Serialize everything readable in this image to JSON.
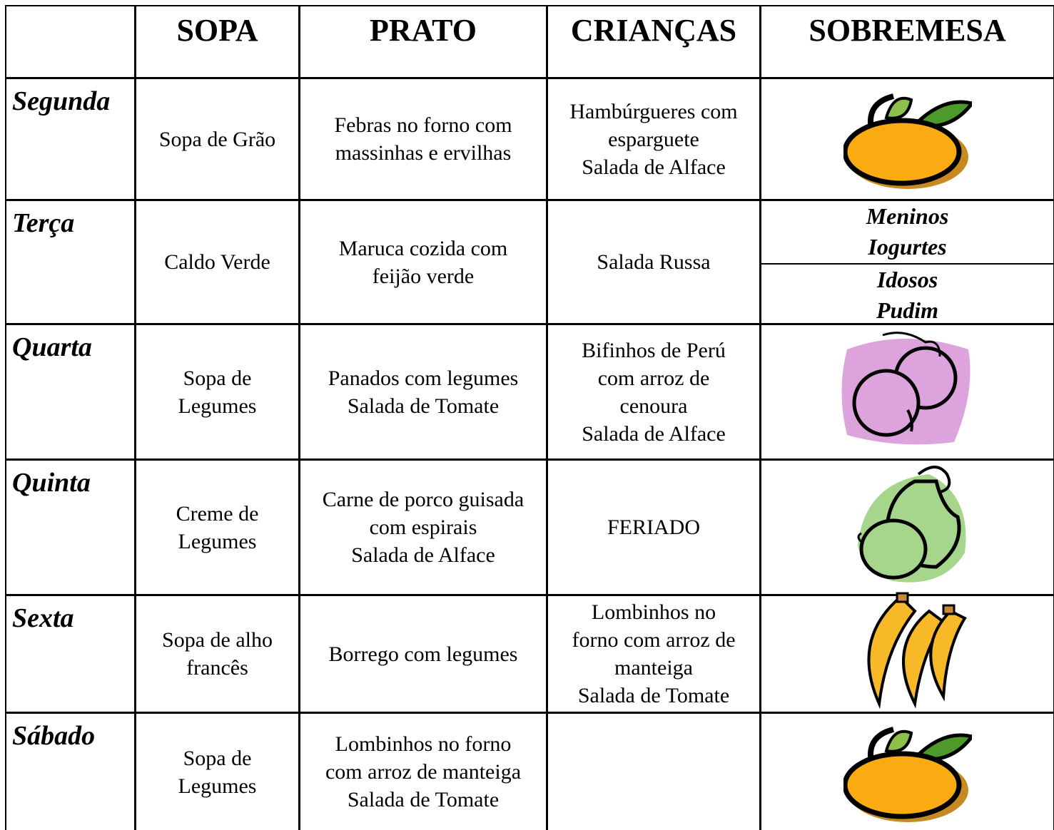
{
  "header": {
    "columns": [
      "SOPA",
      "PRATO",
      "CRIANÇAS",
      "SOBREMESA"
    ]
  },
  "rows": [
    {
      "day": "Segunda",
      "sopa": [
        "Sopa de Grão"
      ],
      "prato": [
        "Febras no forno com",
        "massinhas e ervilhas"
      ],
      "criancas": [
        "Hambúrgueres com",
        "esparguete",
        "Salada de Alface"
      ]
    },
    {
      "day": "Terça",
      "sopa": [
        "Caldo Verde"
      ],
      "prato": [
        "Maruca cozida com",
        "feijão verde"
      ],
      "criancas": [
        "Salada Russa"
      ],
      "sobremesa": [
        [
          "Meninos",
          "Iogurtes"
        ],
        [
          "Idosos",
          "Pudim"
        ]
      ]
    },
    {
      "day": "Quarta",
      "sopa": [
        "Sopa de",
        "Legumes"
      ],
      "prato": [
        "Panados com legumes",
        "Salada de Tomate"
      ],
      "criancas": [
        "Bifinhos de Perú",
        "com arroz de",
        "cenoura",
        "Salada de Alface"
      ]
    },
    {
      "day": "Quinta",
      "sopa": [
        "Creme de",
        "Legumes"
      ],
      "prato": [
        "Carne de porco guisada",
        "com espirais",
        "Salada de Alface"
      ],
      "criancas": [
        "FERIADO"
      ]
    },
    {
      "day": "Sexta",
      "sopa": [
        "Sopa de alho",
        "francês"
      ],
      "prato": [
        "Borrego com legumes"
      ],
      "criancas": [
        "Lombinhos no",
        "forno com arroz de",
        "manteiga",
        "Salada de Tomate"
      ]
    },
    {
      "day": "Sábado",
      "sopa": [
        "Sopa de",
        "Legumes"
      ],
      "prato": [
        "Lombinhos no forno",
        "com arroz de manteiga",
        "Salada de Tomate"
      ],
      "criancas": []
    }
  ]
}
